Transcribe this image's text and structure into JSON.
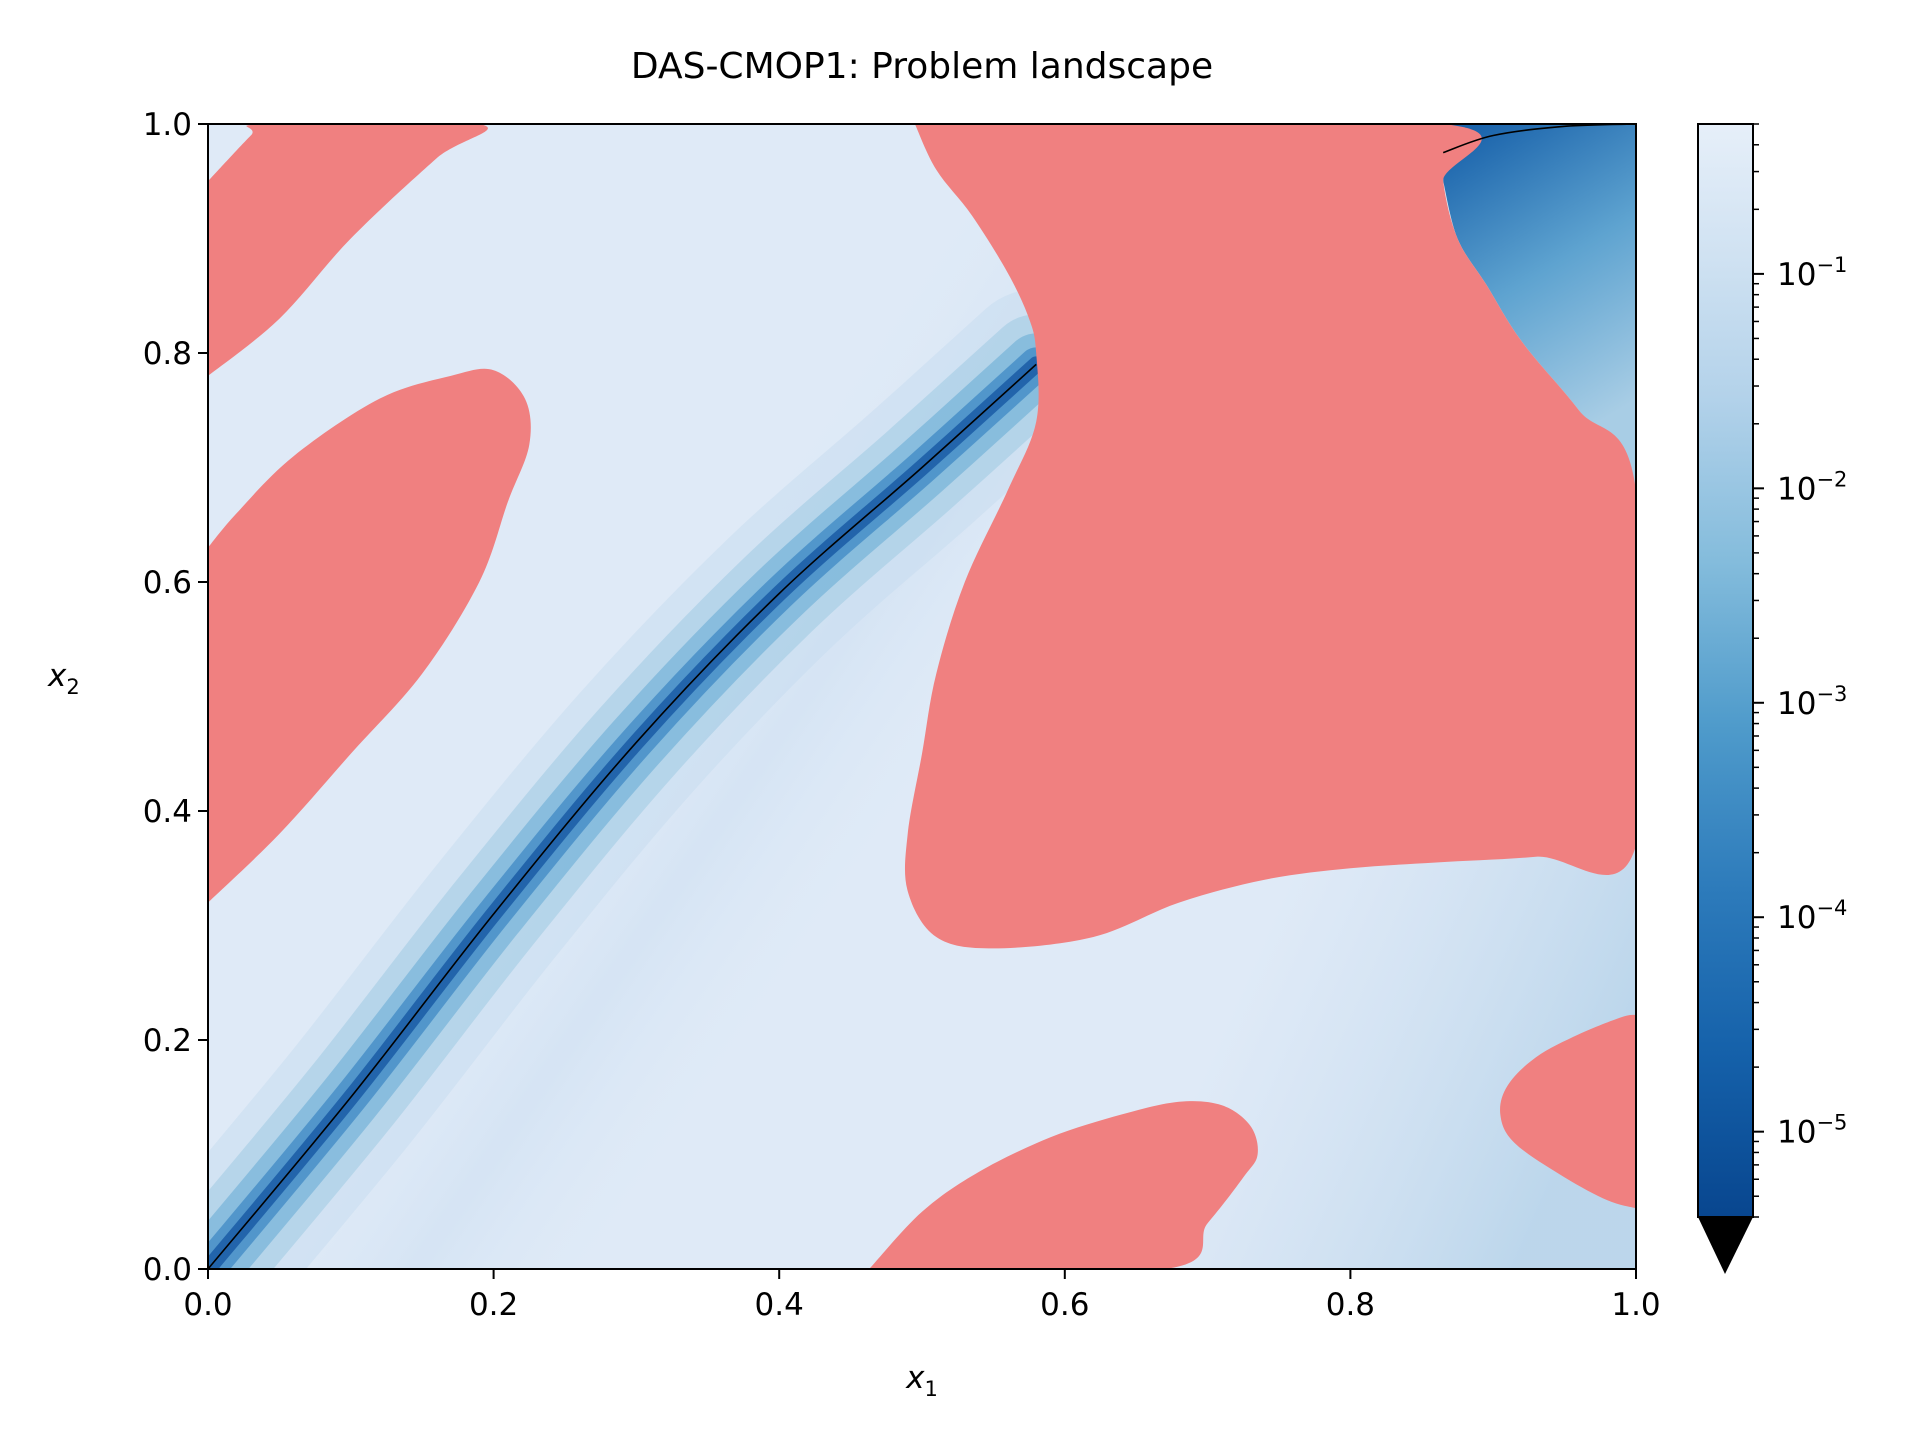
{
  "chart_data": {
    "type": "heatmap",
    "title": "DAS-CMOP1: Problem landscape",
    "xlabel": "x",
    "xlabel_sub": "1",
    "ylabel": "x",
    "ylabel_sub": "2",
    "xlim": [
      0.0,
      1.0
    ],
    "ylim": [
      0.0,
      1.0
    ],
    "x_ticks": [
      0.0,
      0.2,
      0.4,
      0.6,
      0.8,
      1.0
    ],
    "x_tick_labels": [
      "0.0",
      "0.2",
      "0.4",
      "0.6",
      "0.8",
      "1.0"
    ],
    "y_ticks": [
      0.0,
      0.2,
      0.4,
      0.6,
      0.8,
      1.0
    ],
    "y_tick_labels": [
      "0.0",
      "0.2",
      "0.4",
      "0.6",
      "0.8",
      "1.0"
    ],
    "grid": false,
    "colorscale": "Blues_r",
    "colorbar": {
      "scale": "log",
      "range": [
        4e-06,
        0.5
      ],
      "ticks": [
        1e-05,
        0.0001,
        0.001,
        0.01,
        0.1
      ],
      "tick_labels": [
        {
          "base": "10",
          "exp": "−5"
        },
        {
          "base": "10",
          "exp": "−4"
        },
        {
          "base": "10",
          "exp": "−3"
        },
        {
          "base": "10",
          "exp": "−2"
        },
        {
          "base": "10",
          "exp": "−1"
        }
      ],
      "extend": "min",
      "extend_color": "#000000"
    },
    "infeasible_color": "#f08080",
    "infeasible_regions": [
      {
        "name": "top-left",
        "outline": [
          [
            0.0,
            0.95
          ],
          [
            0.03,
            0.99
          ],
          [
            0.04,
            1.0
          ],
          [
            0.19,
            1.0
          ],
          [
            0.16,
            0.97
          ],
          [
            0.1,
            0.9
          ],
          [
            0.05,
            0.83
          ],
          [
            0.0,
            0.78
          ]
        ]
      },
      {
        "name": "left-ellipse",
        "outline": [
          [
            0.0,
            0.32
          ],
          [
            0.05,
            0.38
          ],
          [
            0.1,
            0.45
          ],
          [
            0.15,
            0.52
          ],
          [
            0.19,
            0.6
          ],
          [
            0.21,
            0.67
          ],
          [
            0.225,
            0.72
          ],
          [
            0.222,
            0.76
          ],
          [
            0.2,
            0.785
          ],
          [
            0.17,
            0.78
          ],
          [
            0.12,
            0.76
          ],
          [
            0.06,
            0.71
          ],
          [
            0.02,
            0.66
          ],
          [
            0.0,
            0.63
          ]
        ]
      },
      {
        "name": "central",
        "outline": [
          [
            0.495,
            1.0
          ],
          [
            1.0,
            1.0
          ],
          [
            1.0,
            0.68
          ],
          [
            0.96,
            0.75
          ],
          [
            0.92,
            0.81
          ],
          [
            0.895,
            0.86
          ],
          [
            0.875,
            0.9
          ],
          [
            0.865,
            0.95
          ],
          [
            0.865,
            1.0
          ],
          [
            0.86,
            0.99
          ],
          [
            0.86,
            0.37
          ],
          [
            0.91,
            0.368
          ],
          [
            0.98,
            0.37
          ],
          [
            1.0,
            0.37
          ],
          [
            1.0,
            0.37
          ],
          [
            0.93,
            0.36
          ],
          [
            0.86,
            0.355
          ],
          [
            0.8,
            0.35
          ],
          [
            0.74,
            0.34
          ],
          [
            0.68,
            0.32
          ],
          [
            0.62,
            0.29
          ],
          [
            0.55,
            0.28
          ],
          [
            0.51,
            0.29
          ],
          [
            0.49,
            0.33
          ],
          [
            0.49,
            0.38
          ],
          [
            0.5,
            0.45
          ],
          [
            0.51,
            0.52
          ],
          [
            0.53,
            0.6
          ],
          [
            0.56,
            0.68
          ],
          [
            0.58,
            0.74
          ],
          [
            0.58,
            0.8
          ],
          [
            0.575,
            0.83
          ],
          [
            0.56,
            0.87
          ],
          [
            0.535,
            0.92
          ],
          [
            0.51,
            0.96
          ],
          [
            0.495,
            1.0
          ]
        ]
      },
      {
        "name": "bottom-ellipse",
        "outline": [
          [
            0.463,
            0.0
          ],
          [
            0.67,
            0.0
          ],
          [
            0.7,
            0.04
          ],
          [
            0.725,
            0.08
          ],
          [
            0.735,
            0.1
          ],
          [
            0.73,
            0.125
          ],
          [
            0.71,
            0.143
          ],
          [
            0.68,
            0.146
          ],
          [
            0.64,
            0.135
          ],
          [
            0.59,
            0.115
          ],
          [
            0.54,
            0.085
          ],
          [
            0.5,
            0.05
          ],
          [
            0.463,
            0.0
          ]
        ]
      },
      {
        "name": "right-ellipse",
        "outline": [
          [
            1.0,
            0.053
          ],
          [
            0.98,
            0.06
          ],
          [
            0.95,
            0.08
          ],
          [
            0.915,
            0.11
          ],
          [
            0.905,
            0.135
          ],
          [
            0.91,
            0.16
          ],
          [
            0.93,
            0.185
          ],
          [
            0.96,
            0.205
          ],
          [
            0.99,
            0.22
          ],
          [
            1.0,
            0.222
          ]
        ]
      }
    ],
    "series": [
      {
        "type": "line",
        "x": [
          0.0,
          0.1,
          0.2,
          0.3,
          0.4,
          0.5,
          0.58
        ],
        "y": [
          0.0,
          0.15,
          0.31,
          0.46,
          0.59,
          0.7,
          0.79
        ]
      },
      {
        "type": "line",
        "x": [
          0.865,
          0.9,
          0.95,
          1.0
        ],
        "y": [
          0.975,
          0.99,
          0.998,
          1.0
        ]
      }
    ]
  }
}
